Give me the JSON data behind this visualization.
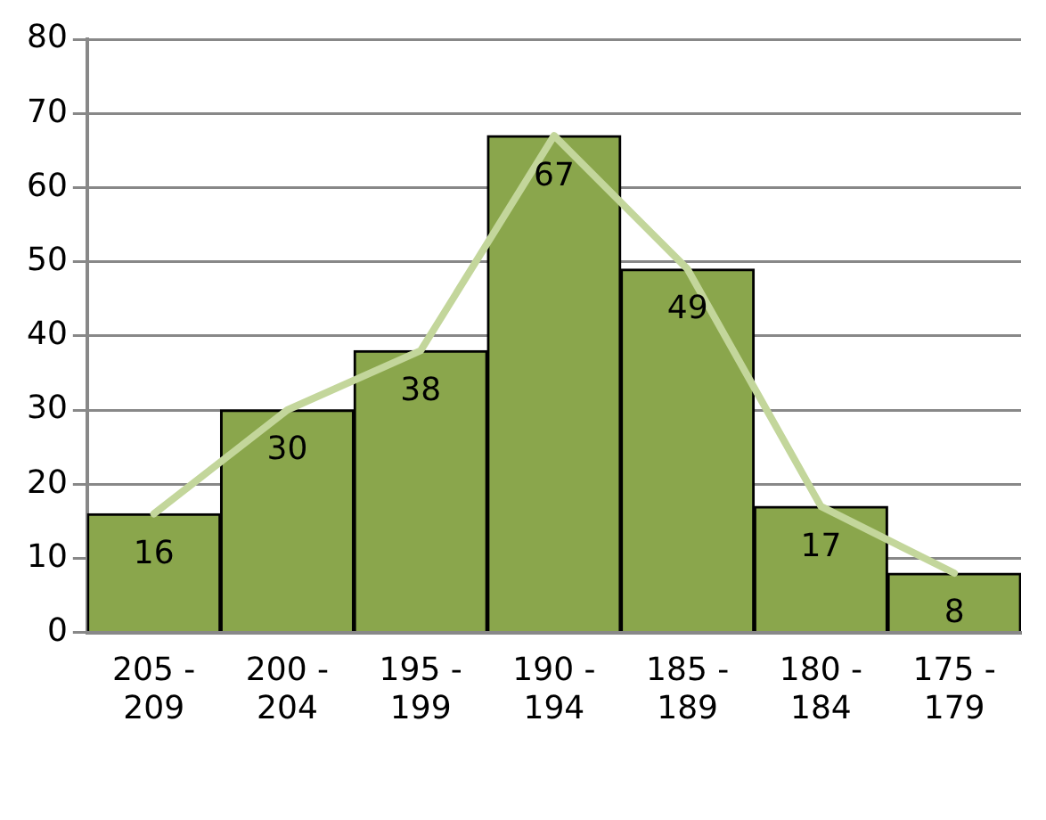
{
  "chart_data": {
    "type": "bar",
    "categories": [
      "205 - 209",
      "200 - 204",
      "195 - 199",
      "190 - 194",
      "185 - 189",
      "180 - 184",
      "175 - 179"
    ],
    "series": [
      {
        "color": "#8aa64c",
        "values": [
          16,
          30,
          38,
          67,
          49,
          17,
          8
        ],
        "value_labels": [
          "16",
          "30",
          "38",
          "67",
          "49",
          "17",
          "8"
        ]
      },
      {
        "type": "line",
        "color": "#c3d69b",
        "values": [
          16,
          30,
          38,
          67,
          49,
          17,
          8
        ]
      }
    ],
    "ylim": [
      0,
      80
    ],
    "yticks": [
      0,
      10,
      20,
      30,
      40,
      50,
      60,
      70,
      80
    ],
    "grid": "y",
    "legend": false,
    "marker": "none"
  }
}
